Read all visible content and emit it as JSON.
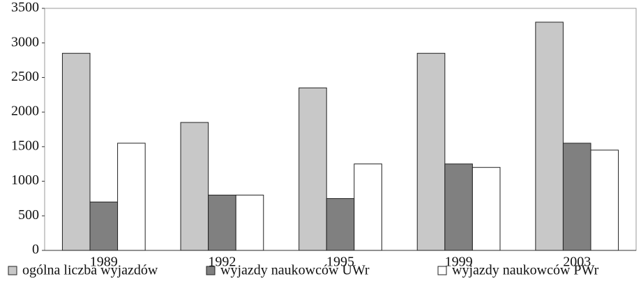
{
  "chart_data": {
    "type": "bar",
    "categories": [
      "1989",
      "1992",
      "1995",
      "1999",
      "2003"
    ],
    "series": [
      {
        "name": "ogólna liczba wyjazdów",
        "color": "#c8c8c8",
        "values": [
          2850,
          1850,
          2350,
          2850,
          3300
        ]
      },
      {
        "name": "wyjazdy naukowców UWr",
        "color": "#808080",
        "values": [
          700,
          800,
          750,
          1250,
          1550
        ]
      },
      {
        "name": "wyjazdy naukowców PWr",
        "color": "#ffffff",
        "values": [
          1550,
          800,
          1250,
          1200,
          1450
        ]
      }
    ],
    "ylim": [
      0,
      3500
    ],
    "yticks": [
      0,
      500,
      1000,
      1500,
      2000,
      2500,
      3000,
      3500
    ],
    "grid": false
  }
}
